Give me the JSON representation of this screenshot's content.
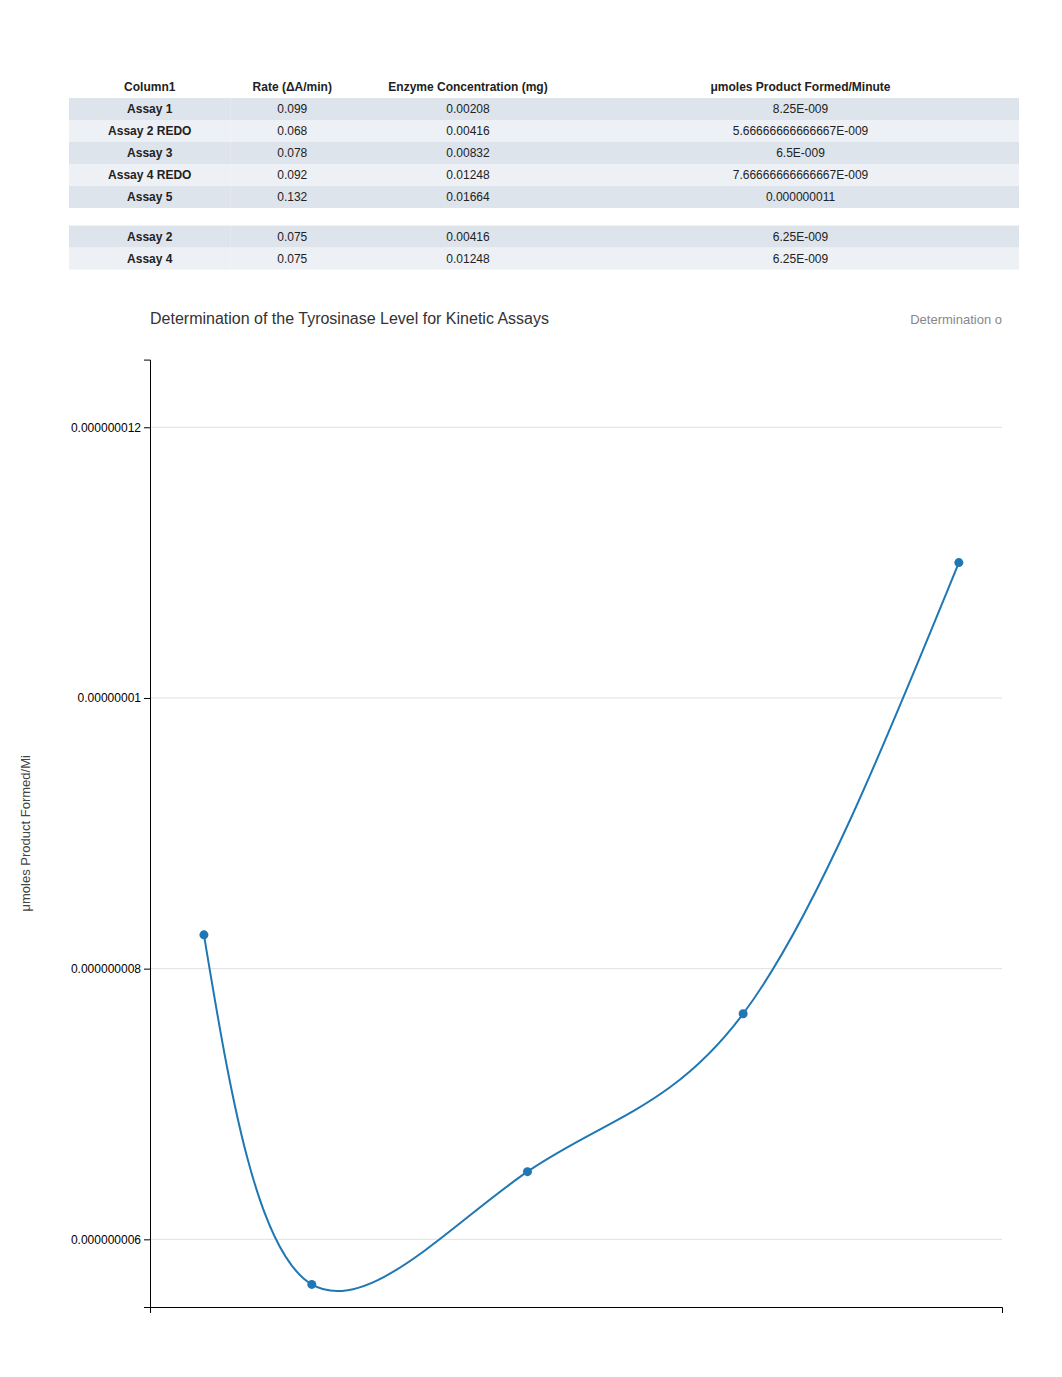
{
  "tables": [
    {
      "headers": [
        "Column1",
        "Rate (ΔA/min)",
        "Enzyme Concentration (mg)",
        "μmoles Product Formed/Minute"
      ],
      "rows": [
        [
          "Assay 1",
          "0.099",
          "0.00208",
          "8.25E-009"
        ],
        [
          "Assay 2 REDO",
          "0.068",
          "0.00416",
          "5.66666666666667E-009"
        ],
        [
          "Assay 3",
          "0.078",
          "0.00832",
          "6.5E-009"
        ],
        [
          "Assay 4 REDO",
          "0.092",
          "0.01248",
          "7.66666666666667E-009"
        ],
        [
          "Assay 5",
          "0.132",
          "0.01664",
          "0.000000011"
        ]
      ]
    },
    {
      "rows": [
        [
          "Assay 2",
          "0.075",
          "0.00416",
          "6.25E-009"
        ],
        [
          "Assay 4",
          "0.075",
          "0.01248",
          "6.25E-009"
        ]
      ]
    }
  ],
  "chart_data": {
    "type": "line",
    "marker": "circle",
    "title": "Determination of the Tyrosinase Level for Kinetic Assays",
    "annotations": [
      "Determination o"
    ],
    "ylabel": "μmoles Product Formed/Mi",
    "x": [
      0.00208,
      0.00416,
      0.00832,
      0.01248,
      0.01664
    ],
    "values": [
      8.25e-09,
      5.666666666666667e-09,
      6.5e-09,
      7.666666666666667e-09,
      1.1e-08
    ],
    "xlim": [
      0.00104,
      0.017472
    ],
    "ylim": [
      5.5e-09,
      1.25e-08
    ],
    "yticks": [
      {
        "value": 6e-09,
        "label": "0.000000006"
      },
      {
        "value": 8e-09,
        "label": "0.000000008"
      },
      {
        "value": 1e-08,
        "label": "0.00000001"
      },
      {
        "value": 1.2e-08,
        "label": "0.000000012"
      }
    ],
    "grid": true,
    "tick_labels": "y"
  }
}
